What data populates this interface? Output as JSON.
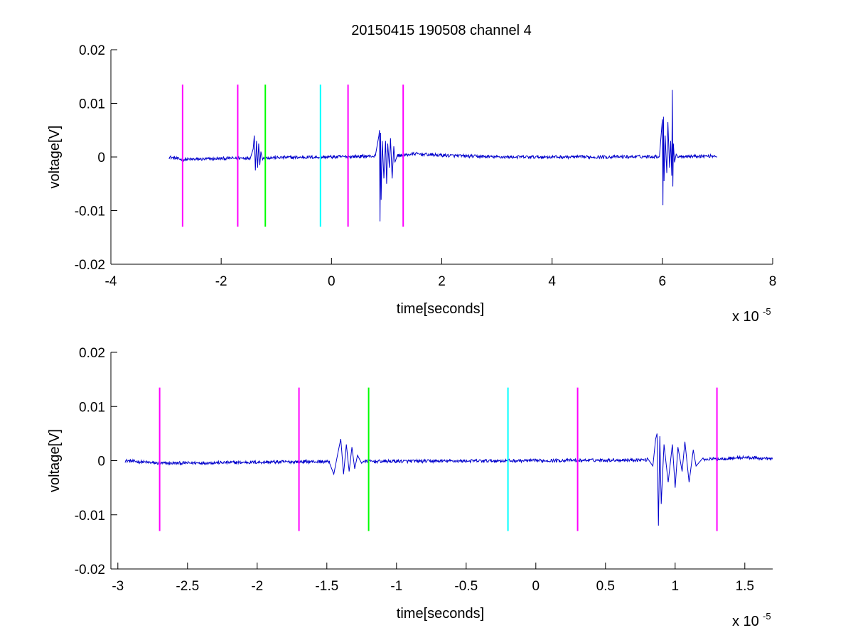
{
  "chart_data": [
    {
      "type": "line",
      "title": "20150415 190508 channel 4",
      "xlabel": "time[seconds]",
      "ylabel": "voltage[V]",
      "x_exponent_label": "x 10",
      "x_exponent": "-5",
      "xlim": [
        -4,
        8
      ],
      "ylim": [
        -0.02,
        0.02
      ],
      "x_ticks": [
        -4,
        -2,
        0,
        2,
        4,
        6,
        8
      ],
      "x_tick_labels": [
        "-4",
        "-2",
        "0",
        "2",
        "4",
        "6",
        "8"
      ],
      "y_ticks": [
        -0.02,
        -0.01,
        0,
        0.01,
        0.02
      ],
      "y_tick_labels": [
        "-0.02",
        "-0.01",
        "0",
        "0.01",
        "0.02"
      ],
      "grid": false,
      "legend": "none",
      "markers": [
        {
          "x": -2.7,
          "color": "#ff00ff",
          "ymin": -0.013,
          "ymax": 0.0135
        },
        {
          "x": -1.7,
          "color": "#ff00ff",
          "ymin": -0.013,
          "ymax": 0.0135
        },
        {
          "x": -1.2,
          "color": "#00ff00",
          "ymin": -0.013,
          "ymax": 0.0135
        },
        {
          "x": -0.2,
          "color": "#00ffff",
          "ymin": -0.013,
          "ymax": 0.0135
        },
        {
          "x": 0.3,
          "color": "#ff00ff",
          "ymin": -0.013,
          "ymax": 0.0135
        },
        {
          "x": 1.3,
          "color": "#ff00ff",
          "ymin": -0.013,
          "ymax": 0.0135
        }
      ],
      "series": [
        {
          "color": "#0000cc",
          "x_range": [
            -2.95,
            7.0
          ],
          "baseline": [
            [
              -2.95,
              0.0
            ],
            [
              -2.7,
              -0.0005
            ],
            [
              -1.7,
              -0.0002
            ],
            [
              0.0,
              0.0
            ],
            [
              1.0,
              0.0002
            ],
            [
              1.3,
              0.0003
            ],
            [
              1.5,
              0.0006
            ],
            [
              2.0,
              0.0003
            ],
            [
              3.0,
              0.0
            ],
            [
              5.0,
              0.0
            ],
            [
              7.0,
              0.0002
            ]
          ],
          "noise_amplitude": 0.0003,
          "bursts": [
            {
              "x": [
                -1.48,
                -1.42,
                -1.4,
                -1.38,
                -1.36,
                -1.34,
                -1.32,
                -1.3,
                -1.28,
                -1.25
              ],
              "y": [
                -0.0005,
                0.0015,
                0.004,
                -0.0025,
                0.003,
                -0.002,
                0.0025,
                -0.0015,
                0.001,
                -0.0005
              ]
            },
            {
              "x": [
                0.8,
                0.86,
                0.87,
                0.88,
                0.89,
                0.9,
                0.92,
                0.95,
                0.98,
                1.0,
                1.02,
                1.05,
                1.07,
                1.1,
                1.13,
                1.15,
                1.2
              ],
              "y": [
                0.0005,
                0.004,
                0.005,
                -0.012,
                0.0045,
                -0.008,
                0.003,
                -0.004,
                0.003,
                -0.005,
                0.0025,
                -0.002,
                0.0035,
                -0.004,
                0.002,
                -0.001,
                0.0005
              ]
            },
            {
              "x": [
                5.95,
                6.0,
                6.01,
                6.02,
                6.03,
                6.05,
                6.08,
                6.1,
                6.13,
                6.15,
                6.17,
                6.18,
                6.19,
                6.2,
                6.22,
                6.25
              ],
              "y": [
                0.0005,
                0.007,
                -0.009,
                0.0075,
                -0.0045,
                0.004,
                -0.003,
                0.0065,
                -0.002,
                0.003,
                -0.0035,
                0.0125,
                -0.0055,
                0.0025,
                -0.001,
                0.0005
              ]
            }
          ]
        }
      ]
    },
    {
      "type": "line",
      "xlabel": "time[seconds]",
      "ylabel": "voltage[V]",
      "x_exponent_label": "x 10",
      "x_exponent": "-5",
      "xlim": [
        -3.05,
        1.7
      ],
      "ylim": [
        -0.02,
        0.02
      ],
      "x_ticks": [
        -3,
        -2.5,
        -2,
        -1.5,
        -1,
        -0.5,
        0,
        0.5,
        1,
        1.5
      ],
      "x_tick_labels": [
        "-3",
        "-2.5",
        "-2",
        "-1.5",
        "-1",
        "-0.5",
        "0",
        "0.5",
        "1",
        "1.5"
      ],
      "y_ticks": [
        -0.02,
        -0.01,
        0,
        0.01,
        0.02
      ],
      "y_tick_labels": [
        "-0.02",
        "-0.01",
        "0",
        "0.01",
        "0.02"
      ],
      "grid": false,
      "legend": "none",
      "markers": [
        {
          "x": -2.7,
          "color": "#ff00ff",
          "ymin": -0.013,
          "ymax": 0.0135
        },
        {
          "x": -1.7,
          "color": "#ff00ff",
          "ymin": -0.013,
          "ymax": 0.0135
        },
        {
          "x": -1.2,
          "color": "#00ff00",
          "ymin": -0.013,
          "ymax": 0.0135
        },
        {
          "x": -0.2,
          "color": "#00ffff",
          "ymin": -0.013,
          "ymax": 0.0135
        },
        {
          "x": 0.3,
          "color": "#ff00ff",
          "ymin": -0.013,
          "ymax": 0.0135
        },
        {
          "x": 1.3,
          "color": "#ff00ff",
          "ymin": -0.013,
          "ymax": 0.0135
        }
      ],
      "series": [
        {
          "color": "#0000cc",
          "x_range": [
            -2.95,
            1.7
          ],
          "baseline": [
            [
              -2.95,
              0.0
            ],
            [
              -2.7,
              -0.0005
            ],
            [
              -1.7,
              -0.0002
            ],
            [
              0.0,
              0.0
            ],
            [
              1.0,
              0.0002
            ],
            [
              1.3,
              0.0003
            ],
            [
              1.5,
              0.0006
            ],
            [
              1.7,
              0.0003
            ]
          ],
          "noise_amplitude": 0.0003,
          "bursts": [
            {
              "x": [
                -1.48,
                -1.45,
                -1.42,
                -1.4,
                -1.38,
                -1.36,
                -1.34,
                -1.32,
                -1.3,
                -1.28,
                -1.25
              ],
              "y": [
                -0.0005,
                -0.0025,
                0.0015,
                0.004,
                -0.0025,
                0.003,
                -0.002,
                0.0025,
                -0.0015,
                0.001,
                -0.0005
              ]
            },
            {
              "x": [
                0.8,
                0.84,
                0.86,
                0.87,
                0.88,
                0.89,
                0.9,
                0.92,
                0.95,
                0.98,
                1.0,
                1.02,
                1.05,
                1.07,
                1.1,
                1.13,
                1.15,
                1.2
              ],
              "y": [
                0.0005,
                -0.001,
                0.004,
                0.005,
                -0.012,
                0.0045,
                -0.008,
                0.003,
                -0.004,
                0.003,
                -0.005,
                0.0025,
                -0.002,
                0.0035,
                -0.004,
                0.002,
                -0.001,
                0.0005
              ]
            }
          ]
        }
      ]
    }
  ]
}
